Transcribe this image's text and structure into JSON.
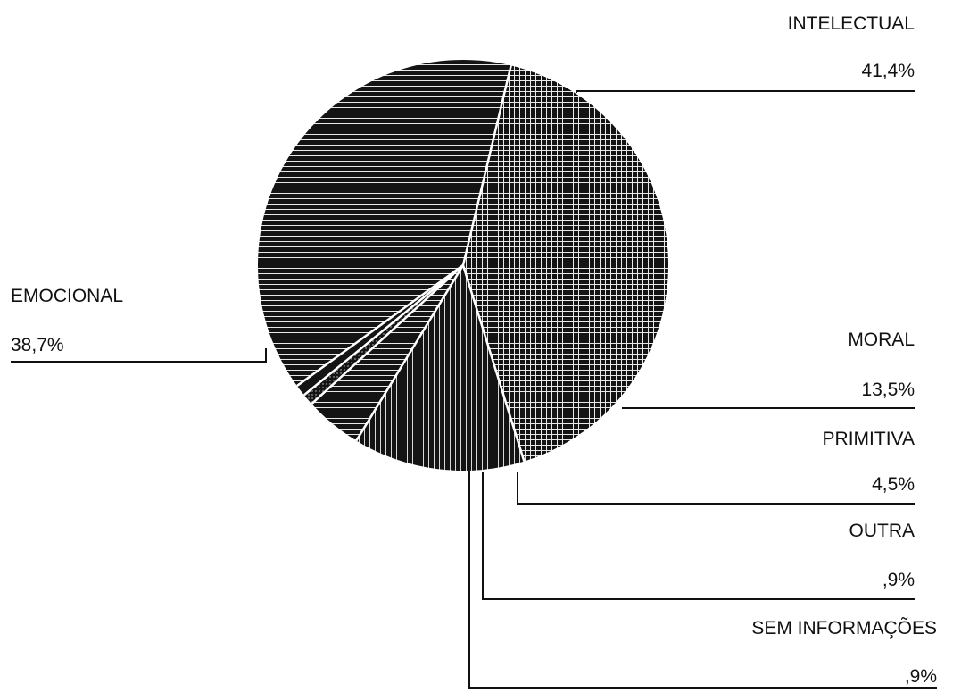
{
  "chart_data": {
    "type": "pie",
    "title": "",
    "slices": [
      {
        "category": "INTELECTUAL",
        "percent_label": "41,4%",
        "value": 41.4
      },
      {
        "category": "MORAL",
        "percent_label": "13,5%",
        "value": 13.5
      },
      {
        "category": "PRIMITIVA",
        "percent_label": "4,5%",
        "value": 4.5
      },
      {
        "category": "OUTRA",
        "percent_label": ",9%",
        "value": 0.9
      },
      {
        "category": "SEM INFORMAÇÕES",
        "percent_label": ",9%",
        "value": 0.9
      },
      {
        "category": "EMOCIONAL",
        "percent_label": "38,7%",
        "value": 38.7
      }
    ],
    "legend": "none",
    "colors": {
      "fill": "#141414",
      "hatch": "#f2f2f2",
      "separator": "#ffffff",
      "text": "#111111"
    }
  }
}
